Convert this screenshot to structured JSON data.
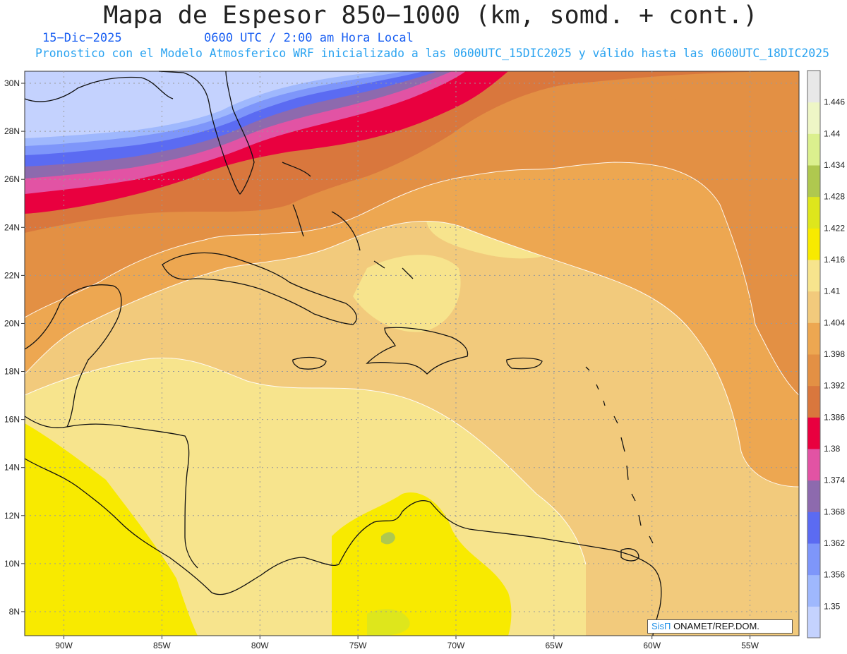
{
  "header": {
    "title": "Mapa de Espesor 850−1000 (km, somd. + cont.)",
    "date": "15−Dic−2025",
    "time": "0600 UTC / 2:00 am Hora Local",
    "description": "Pronostico con el Modelo Atmosferico WRF inicializado a las 0600UTC_15DIC2025 y válido hasta las  0600UTC_18DIC2025"
  },
  "map": {
    "lat_labels": [
      "30N",
      "28N",
      "26N",
      "24N",
      "22N",
      "20N",
      "18N",
      "16N",
      "14N",
      "12N",
      "10N",
      "8N"
    ],
    "lon_labels": [
      "90W",
      "85W",
      "80W",
      "75W",
      "70W",
      "65W",
      "60W",
      "55W"
    ],
    "lat_range": [
      7,
      30.5
    ],
    "lon_range": [
      -92,
      -52.5
    ]
  },
  "colorbar": {
    "labels": [
      "1.446",
      "1.44",
      "1.434",
      "1.428",
      "1.422",
      "1.416",
      "1.41",
      "1.404",
      "1.398",
      "1.392",
      "1.386",
      "1.38",
      "1.374",
      "1.368",
      "1.362",
      "1.356",
      "1.35"
    ],
    "colors": [
      "#c4d2fe",
      "#9fb8fd",
      "#7e96fa",
      "#5b6bf2",
      "#8d6aae",
      "#e253a4",
      "#e9003f",
      "#d9773d",
      "#e39044",
      "#eda751",
      "#f2ca7c",
      "#f7e48d",
      "#f8ea00",
      "#dee61c",
      "#afc84f",
      "#dbf08e",
      "#eef6c6",
      "#e8e8e8"
    ]
  },
  "credit": {
    "brand": "SisΠ",
    "text": " ONAMET/REP.DOM."
  }
}
